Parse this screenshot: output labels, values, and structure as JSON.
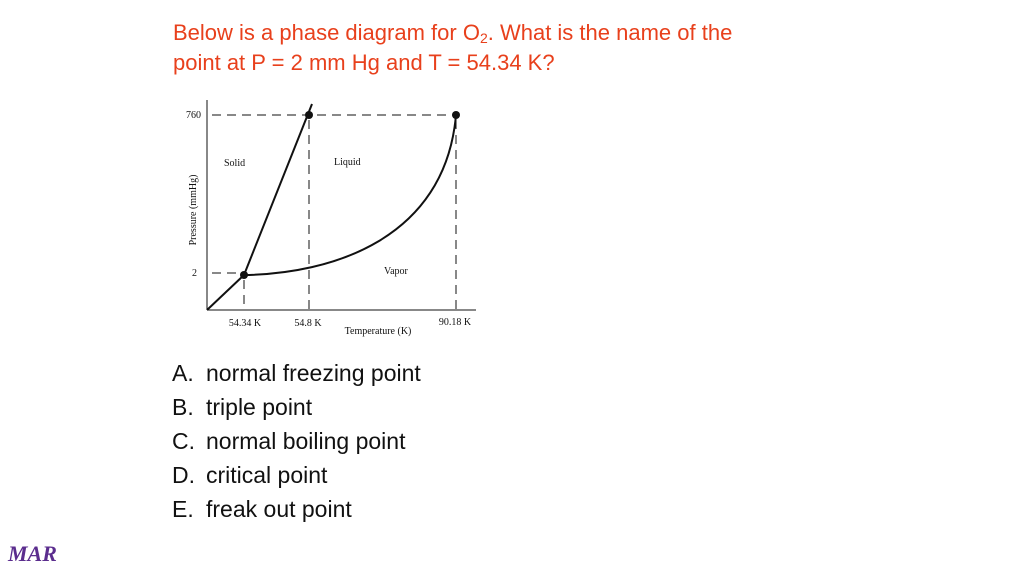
{
  "question": {
    "line1_start": "Below is a phase diagram for O",
    "subscript": "2",
    "line1_end": ". What is the name of the",
    "line2": "point at P = 2 mm Hg and T = 54.34 K?"
  },
  "diagram": {
    "y_axis_label": "Pressure (mmHg)",
    "x_axis_label": "Temperature (K)",
    "pressure_labels": [
      "760",
      "2"
    ],
    "temperature_labels": [
      "54.34 K",
      "54.8 K",
      "90.18 K"
    ],
    "region_labels": [
      "Solid",
      "Liquid",
      "Vapor"
    ]
  },
  "options": [
    {
      "letter": "A.",
      "text": "normal freezing point"
    },
    {
      "letter": "B.",
      "text": "triple point"
    },
    {
      "letter": "C.",
      "text": "normal boiling point"
    },
    {
      "letter": "D.",
      "text": "critical point"
    },
    {
      "letter": "E.",
      "text": "freak out point"
    }
  ],
  "footer": "MAR"
}
